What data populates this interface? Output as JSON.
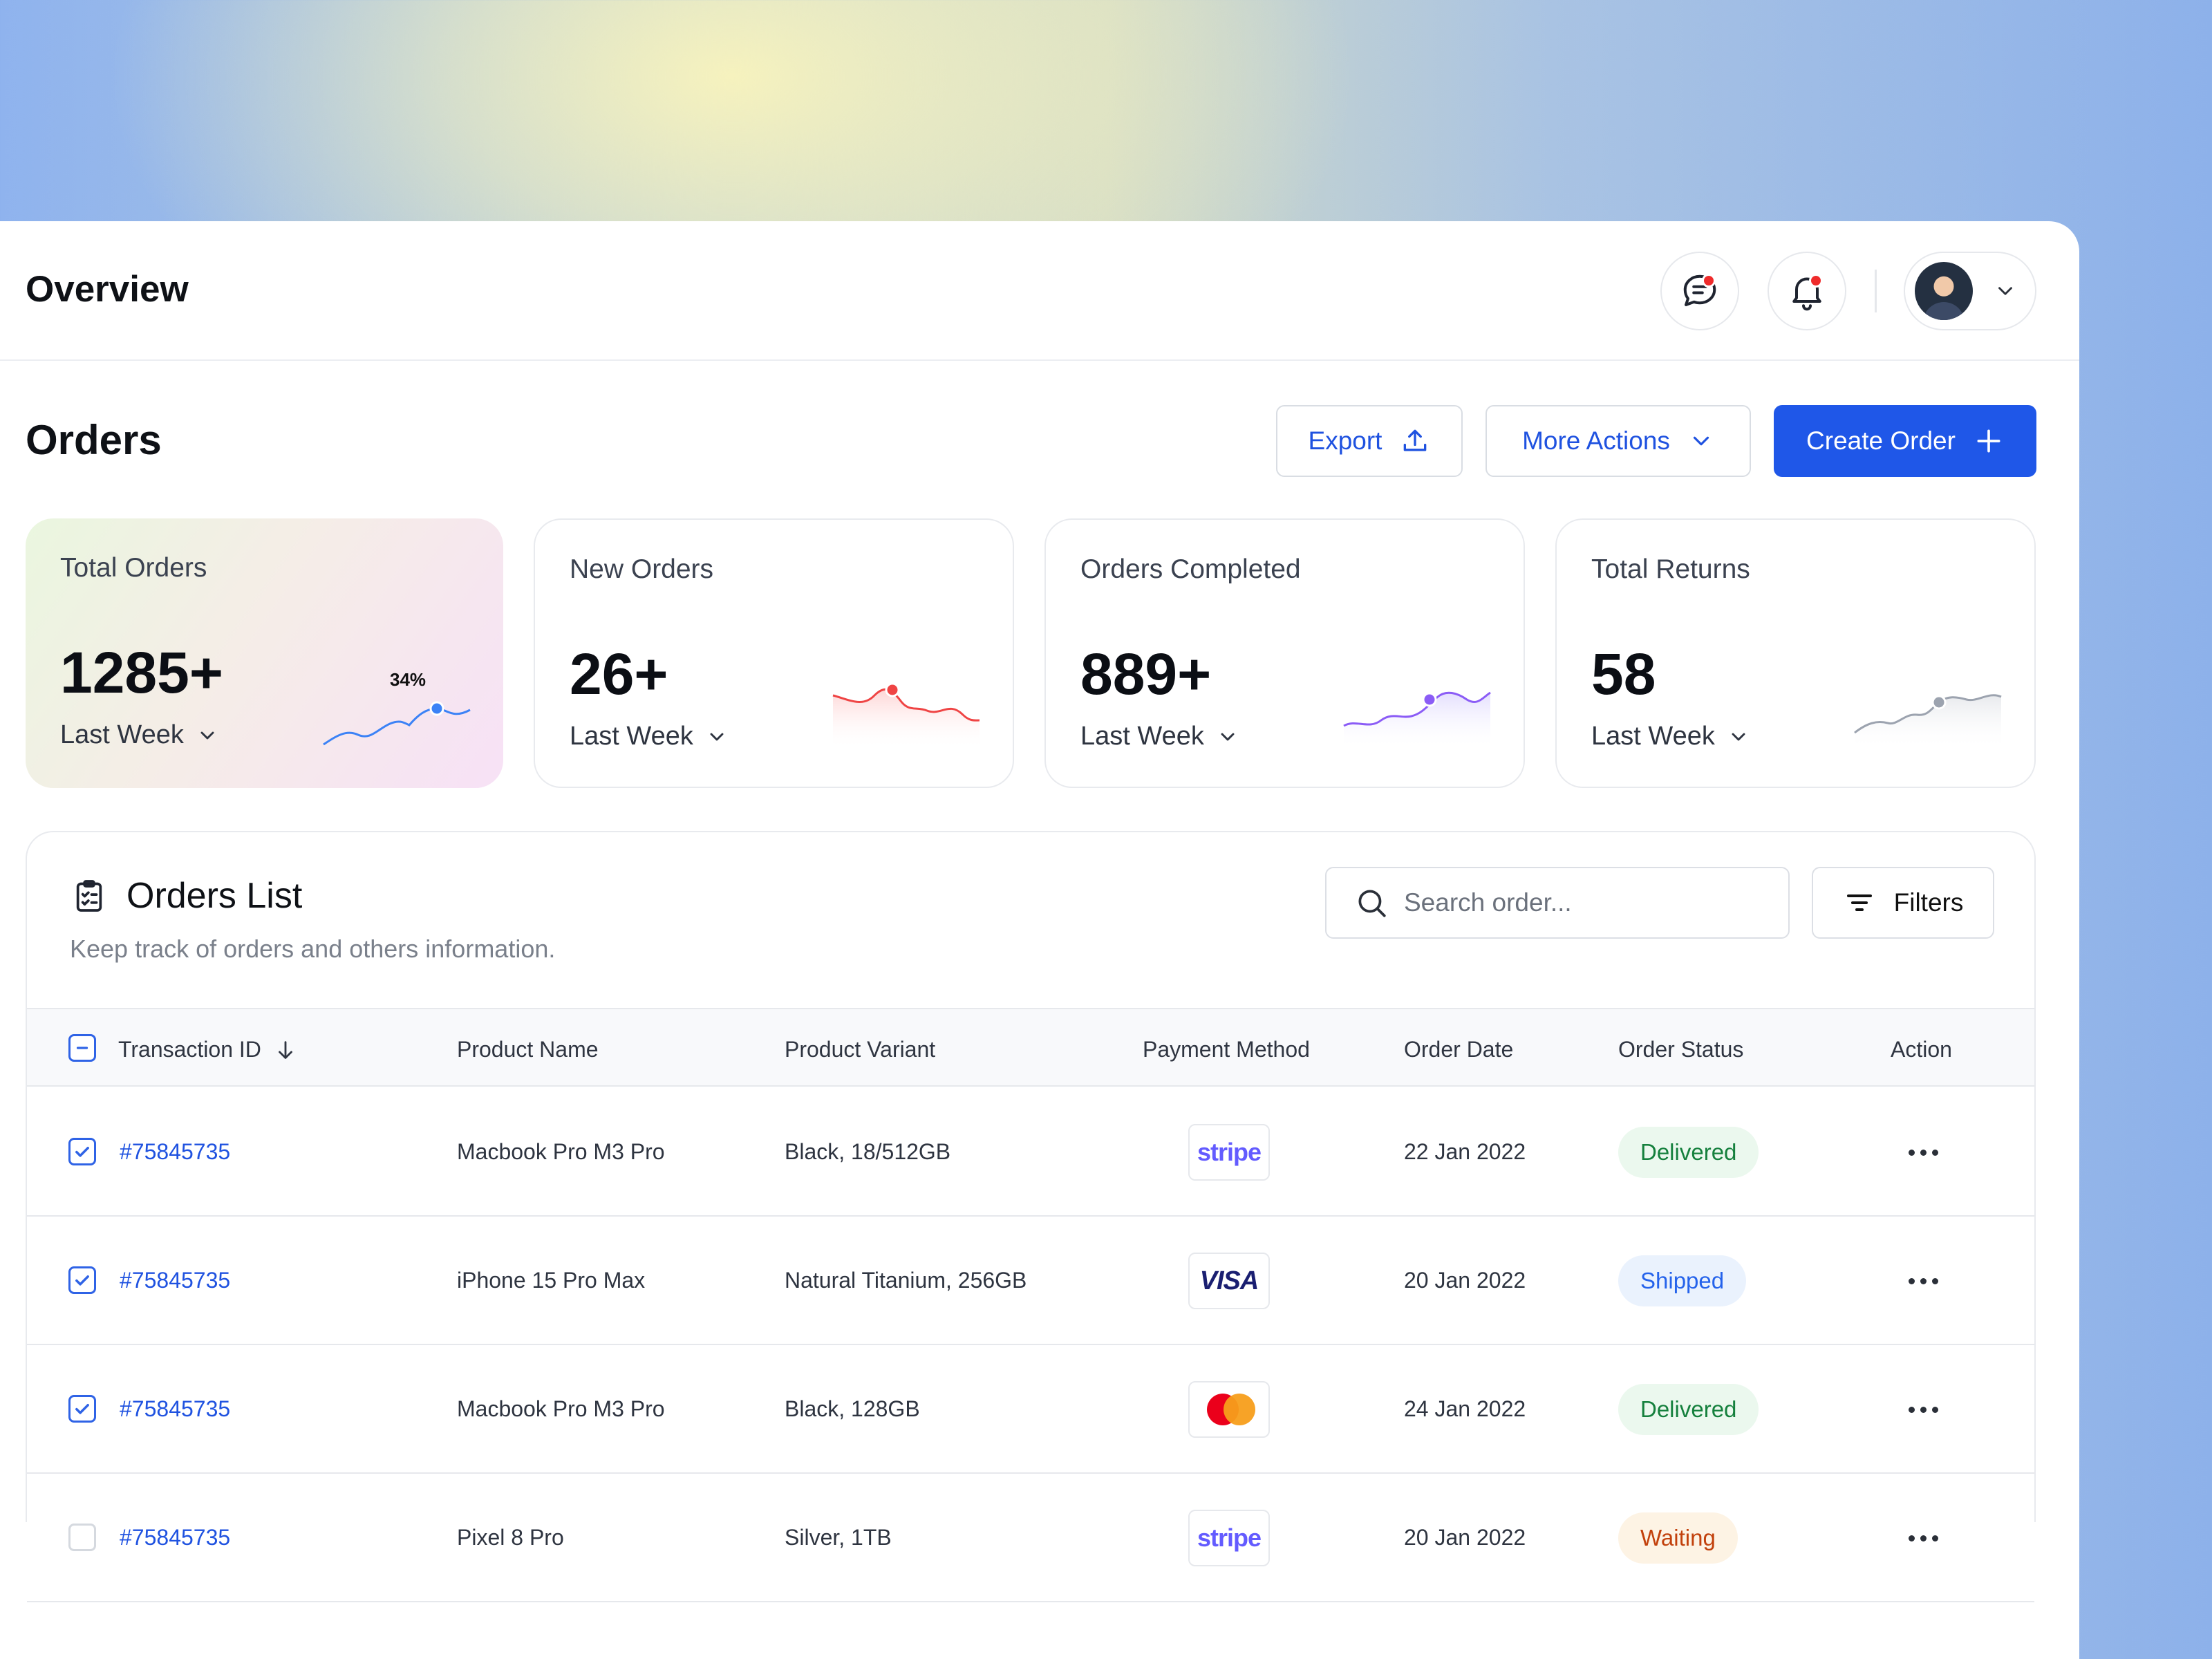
{
  "header": {
    "title": "Overview",
    "icons": [
      "chat-icon",
      "bell-icon",
      "chevron-down-icon"
    ]
  },
  "orders": {
    "title": "Orders",
    "export_label": "Export",
    "more_actions_label": "More Actions",
    "create_label": "Create Order"
  },
  "cards": [
    {
      "label": "Total Orders",
      "value": "1285+",
      "period": "Last Week",
      "badge": "34%",
      "accent": "#3b82f6"
    },
    {
      "label": "New Orders",
      "value": "26+",
      "period": "Last Week",
      "accent": "#ef4444"
    },
    {
      "label": "Orders Completed",
      "value": "889+",
      "period": "Last Week",
      "accent": "#8b5cf6"
    },
    {
      "label": "Total Returns",
      "value": "58",
      "period": "Last Week",
      "accent": "#9ca3af"
    }
  ],
  "list": {
    "title": "Orders List",
    "subtitle": "Keep track of orders and others information.",
    "search_placeholder": "Search order...",
    "filters_label": "Filters",
    "columns": [
      "Transaction ID",
      "Product Name",
      "Product Variant",
      "Payment Method",
      "Order Date",
      "Order Status",
      "Action"
    ],
    "rows": [
      {
        "id": "#75845735",
        "product": "Macbook Pro M3 Pro",
        "variant": "Black, 18/512GB",
        "payment": "stripe",
        "date": "22 Jan 2022",
        "status": "Delivered",
        "status_key": "delivered",
        "checked": true
      },
      {
        "id": "#75845735",
        "product": "iPhone 15 Pro Max",
        "variant": "Natural Titanium, 256GB",
        "payment": "VISA",
        "date": "20 Jan 2022",
        "status": "Shipped",
        "status_key": "shipped",
        "checked": true
      },
      {
        "id": "#75845735",
        "product": "Macbook Pro M3 Pro",
        "variant": "Black, 128GB",
        "payment": "mastercard",
        "date": "24 Jan 2022",
        "status": "Delivered",
        "status_key": "delivered",
        "checked": true
      },
      {
        "id": "#75845735",
        "product": "Pixel 8 Pro",
        "variant": "Silver, 1TB",
        "payment": "stripe",
        "date": "20 Jan 2022",
        "status": "Waiting",
        "status_key": "waiting",
        "checked": false
      }
    ]
  }
}
